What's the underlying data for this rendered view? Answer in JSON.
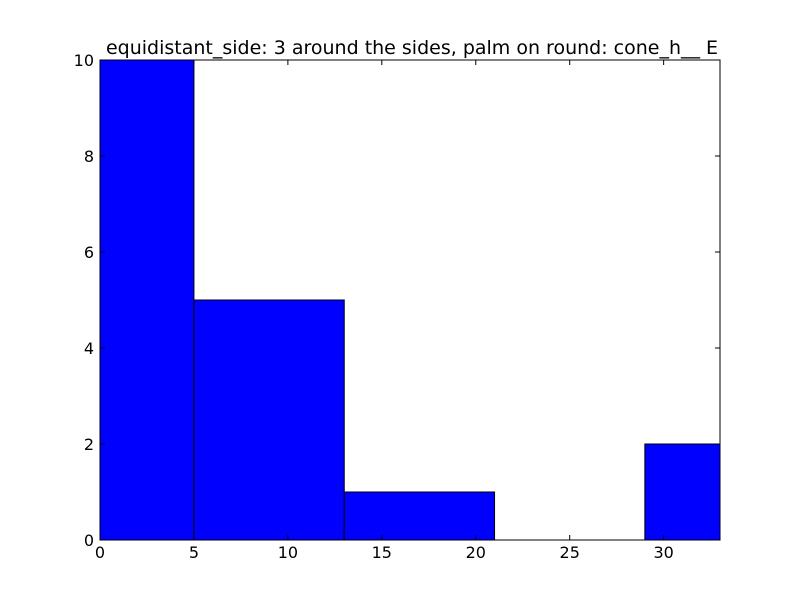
{
  "chart_data": {
    "type": "bar",
    "title": "equidistant_side: 3 around the sides, palm on round: cone_h__ E",
    "xlabel": "",
    "ylabel": "",
    "xlim": [
      0,
      33
    ],
    "ylim": [
      0,
      10
    ],
    "x_ticks": [
      0,
      5,
      10,
      15,
      20,
      25,
      30
    ],
    "y_ticks": [
      0,
      2,
      4,
      6,
      8,
      10
    ],
    "bins": [
      {
        "x0": 0,
        "x1": 5,
        "count": 10
      },
      {
        "x0": 5,
        "x1": 13,
        "count": 5
      },
      {
        "x0": 13,
        "x1": 21,
        "count": 1
      },
      {
        "x0": 21,
        "x1": 29,
        "count": 0
      },
      {
        "x0": 29,
        "x1": 33,
        "count": 2
      }
    ],
    "bar_color": "#0000ff",
    "edge_color": "#000000",
    "grid": false
  }
}
